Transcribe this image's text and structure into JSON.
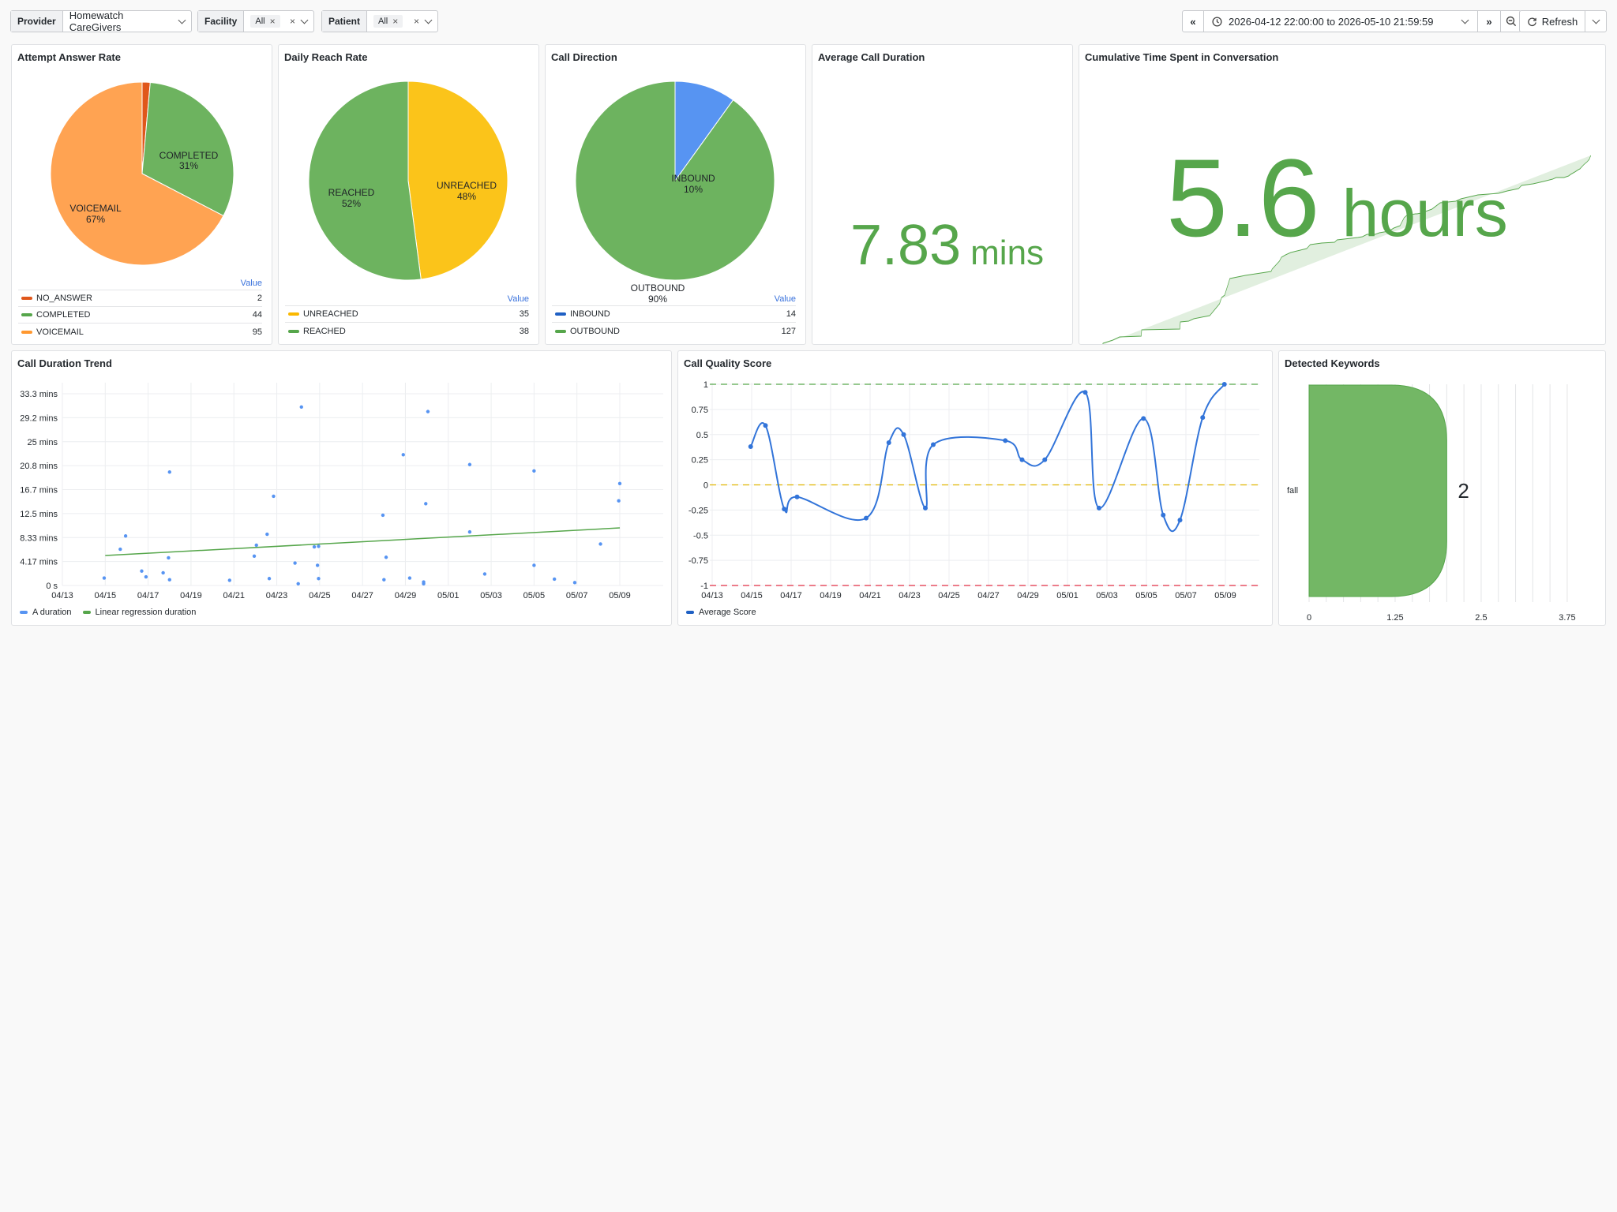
{
  "toolbar": {
    "provider_label": "Provider",
    "provider_value": "Homewatch CareGivers",
    "facility_label": "Facility",
    "facility_value": "All",
    "patient_label": "Patient",
    "patient_value": "All",
    "time_range": "2026-04-12 22:00:00 to 2026-05-10 21:59:59",
    "refresh_label": "Refresh"
  },
  "panels": {
    "attempt": {
      "title": "Attempt Answer Rate",
      "legend_header": "Value",
      "slices": [
        {
          "name": "NO_ANSWER",
          "value": 2,
          "color": "#e0571b"
        },
        {
          "name": "COMPLETED",
          "value": 44,
          "color": "#6db35f"
        },
        {
          "name": "VOICEMAIL",
          "value": 95,
          "color": "#ffa352"
        }
      ],
      "labels": {
        "completed": "COMPLETED",
        "completed_pct": "31%",
        "voicemail": "VOICEMAIL",
        "voicemail_pct": "67%"
      }
    },
    "reach": {
      "title": "Daily Reach Rate",
      "legend_header": "Value",
      "slices": [
        {
          "name": "UNREACHED",
          "value": 35,
          "color": "#fbc41a"
        },
        {
          "name": "REACHED",
          "value": 38,
          "color": "#6db35f"
        }
      ],
      "labels": {
        "reached": "REACHED",
        "reached_pct": "52%",
        "unreached": "UNREACHED",
        "unreached_pct": "48%"
      }
    },
    "direction": {
      "title": "Call Direction",
      "legend_header": "Value",
      "slices": [
        {
          "name": "INBOUND",
          "value": 14,
          "color": "#5794f2"
        },
        {
          "name": "OUTBOUND",
          "value": 127,
          "color": "#6db35f"
        }
      ],
      "labels": {
        "inbound": "INBOUND",
        "inbound_pct": "10%",
        "outbound": "OUTBOUND",
        "outbound_pct": "90%"
      }
    },
    "avg_duration": {
      "title": "Average Call Duration",
      "value": "7.83",
      "unit": "mins"
    },
    "cumulative": {
      "title": "Cumulative Time Spent in Conversation",
      "value": "5.6",
      "unit": "hours"
    },
    "trend": {
      "title": "Call Duration Trend",
      "legend": [
        "A duration",
        "Linear regression duration"
      ]
    },
    "quality": {
      "title": "Call Quality Score",
      "legend": [
        "Average Score"
      ]
    },
    "keywords": {
      "title": "Detected Keywords",
      "category": "fall",
      "value": "2",
      "x_ticks": [
        "0",
        "1.25",
        "2.5",
        "3.75"
      ]
    }
  },
  "chart_data": [
    {
      "type": "pie",
      "title": "Attempt Answer Rate",
      "categories": [
        "NO_ANSWER",
        "COMPLETED",
        "VOICEMAIL"
      ],
      "values": [
        2,
        44,
        95
      ]
    },
    {
      "type": "pie",
      "title": "Daily Reach Rate",
      "categories": [
        "UNREACHED",
        "REACHED"
      ],
      "values": [
        35,
        38
      ]
    },
    {
      "type": "pie",
      "title": "Call Direction",
      "categories": [
        "INBOUND",
        "OUTBOUND"
      ],
      "values": [
        14,
        127
      ]
    },
    {
      "type": "scatter",
      "title": "Call Duration Trend",
      "x_ticks": [
        "04/13",
        "04/15",
        "04/17",
        "04/19",
        "04/21",
        "04/23",
        "04/25",
        "04/27",
        "04/29",
        "05/01",
        "05/03",
        "05/05",
        "05/07",
        "05/09"
      ],
      "y_ticks": [
        "0 s",
        "4.17 mins",
        "8.33 mins",
        "12.5 mins",
        "16.7 mins",
        "20.8 mins",
        "25 mins",
        "29.2 mins",
        "33.3 mins"
      ],
      "ylim": [
        0,
        33.3
      ],
      "series": [
        {
          "name": "A duration",
          "points": [
            [
              1.95,
              1.3
            ],
            [
              2.7,
              6.3
            ],
            [
              2.95,
              8.6
            ],
            [
              3.7,
              2.5
            ],
            [
              3.9,
              1.5
            ],
            [
              4.7,
              2.2
            ],
            [
              4.95,
              4.8
            ],
            [
              5.0,
              1.0
            ],
            [
              5.0,
              19.7
            ],
            [
              7.8,
              0.9
            ],
            [
              8.95,
              5.1
            ],
            [
              9.05,
              7.0
            ],
            [
              9.55,
              8.9
            ],
            [
              9.65,
              1.2
            ],
            [
              9.85,
              15.5
            ],
            [
              10.85,
              3.9
            ],
            [
              11.0,
              0.3
            ],
            [
              11.15,
              31.0
            ],
            [
              11.75,
              6.7
            ],
            [
              11.9,
              3.5
            ],
            [
              11.95,
              1.2
            ],
            [
              11.95,
              6.8
            ],
            [
              14.95,
              12.2
            ],
            [
              15.1,
              4.9
            ],
            [
              15.0,
              1.0
            ],
            [
              15.9,
              22.7
            ],
            [
              16.2,
              1.3
            ],
            [
              16.85,
              0.6
            ],
            [
              16.85,
              0.3
            ],
            [
              16.95,
              14.2
            ],
            [
              17.05,
              30.2
            ],
            [
              19.0,
              21.0
            ],
            [
              19.0,
              9.3
            ],
            [
              19.7,
              2.0
            ],
            [
              22.0,
              19.9
            ],
            [
              22.0,
              3.5
            ],
            [
              22.95,
              1.1
            ],
            [
              23.9,
              0.5
            ],
            [
              25.1,
              7.2
            ],
            [
              25.95,
              14.7
            ],
            [
              26.0,
              17.7
            ]
          ]
        },
        {
          "name": "Linear regression duration",
          "points": [
            [
              2.0,
              5.2
            ],
            [
              26.0,
              10.0
            ]
          ]
        }
      ]
    },
    {
      "type": "line",
      "title": "Call Quality Score",
      "x_ticks": [
        "04/13",
        "04/15",
        "04/17",
        "04/19",
        "04/21",
        "04/23",
        "04/25",
        "04/27",
        "04/29",
        "05/01",
        "05/03",
        "05/05",
        "05/07",
        "05/09"
      ],
      "y_ticks": [
        "1",
        "0.75",
        "0.5",
        "0.25",
        "0",
        "-0.25",
        "-0.5",
        "-0.75",
        "-1"
      ],
      "ylim": [
        -1,
        1
      ],
      "thresholds": [
        1,
        0,
        -1
      ],
      "series": [
        {
          "name": "Average Score",
          "points": [
            [
              1.95,
              0.38
            ],
            [
              2.7,
              0.59
            ],
            [
              3.65,
              -0.24
            ],
            [
              4.3,
              -0.12
            ],
            [
              7.8,
              -0.33
            ],
            [
              8.95,
              0.42
            ],
            [
              9.7,
              0.5
            ],
            [
              10.8,
              -0.23
            ],
            [
              11.2,
              0.4
            ],
            [
              14.85,
              0.44
            ],
            [
              15.7,
              0.25
            ],
            [
              16.85,
              0.25
            ],
            [
              18.9,
              0.92
            ],
            [
              19.6,
              -0.23
            ],
            [
              21.85,
              0.66
            ],
            [
              22.85,
              -0.3
            ],
            [
              23.7,
              -0.35
            ],
            [
              24.85,
              0.67
            ],
            [
              25.95,
              1.0
            ]
          ]
        }
      ]
    },
    {
      "type": "bar",
      "title": "Detected Keywords",
      "categories": [
        "fall"
      ],
      "values": [
        2
      ],
      "x_ticks": [
        "0",
        "1.25",
        "2.5",
        "3.75"
      ]
    }
  ]
}
